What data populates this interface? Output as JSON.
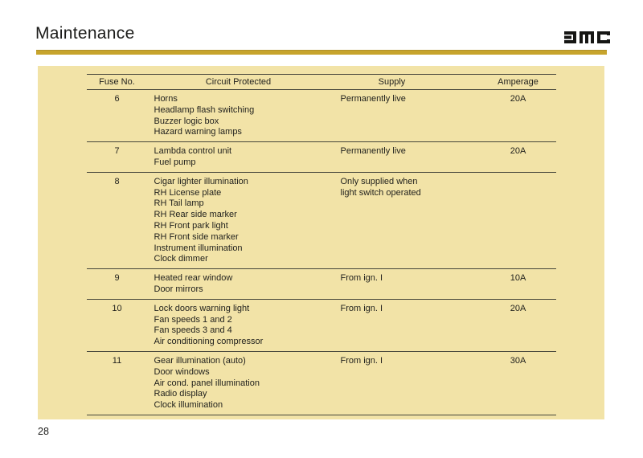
{
  "page": {
    "title": "Maintenance",
    "page_number": "28"
  },
  "logo": {
    "name": "DMC",
    "color": "#161614"
  },
  "colors": {
    "accent_gold": "#C7A42C",
    "panel_background": "#F2E3A7",
    "rule": "#45453A",
    "text": "#22221E"
  },
  "table": {
    "columns": [
      "Fuse No.",
      "Circuit Protected",
      "Supply",
      "Amperage"
    ],
    "rows": [
      {
        "fuse_no": "6",
        "circuits": [
          "Horns",
          "Headlamp flash switching",
          "Buzzer logic box",
          "Hazard warning lamps"
        ],
        "supply": [
          "Permanently live"
        ],
        "amperage": "20A"
      },
      {
        "fuse_no": "7",
        "circuits": [
          "Lambda control unit",
          "Fuel pump"
        ],
        "supply": [
          "Permanently live"
        ],
        "amperage": "20A"
      },
      {
        "fuse_no": "8",
        "circuits": [
          "Cigar lighter illumination",
          "RH License plate",
          "RH Tail lamp",
          "RH Rear side marker",
          "RH Front park light",
          "RH Front side marker",
          "Instrument illumination",
          "Clock dimmer"
        ],
        "supply": [
          "Only supplied when",
          "light switch operated"
        ],
        "amperage": ""
      },
      {
        "fuse_no": "9",
        "circuits": [
          "Heated rear window",
          "Door mirrors"
        ],
        "supply": [
          "From ign. I"
        ],
        "amperage": "10A"
      },
      {
        "fuse_no": "10",
        "circuits": [
          "Lock doors warning light",
          "Fan speeds 1 and 2",
          "Fan speeds 3 and 4",
          "Air conditioning compressor"
        ],
        "supply": [
          "From ign. I"
        ],
        "amperage": "20A"
      },
      {
        "fuse_no": "11",
        "circuits": [
          "Gear illumination (auto)",
          "Door windows",
          "Air cond. panel illumination",
          "Radio display",
          "Clock illumination"
        ],
        "supply": [
          "From ign. I"
        ],
        "amperage": "30A"
      }
    ]
  }
}
